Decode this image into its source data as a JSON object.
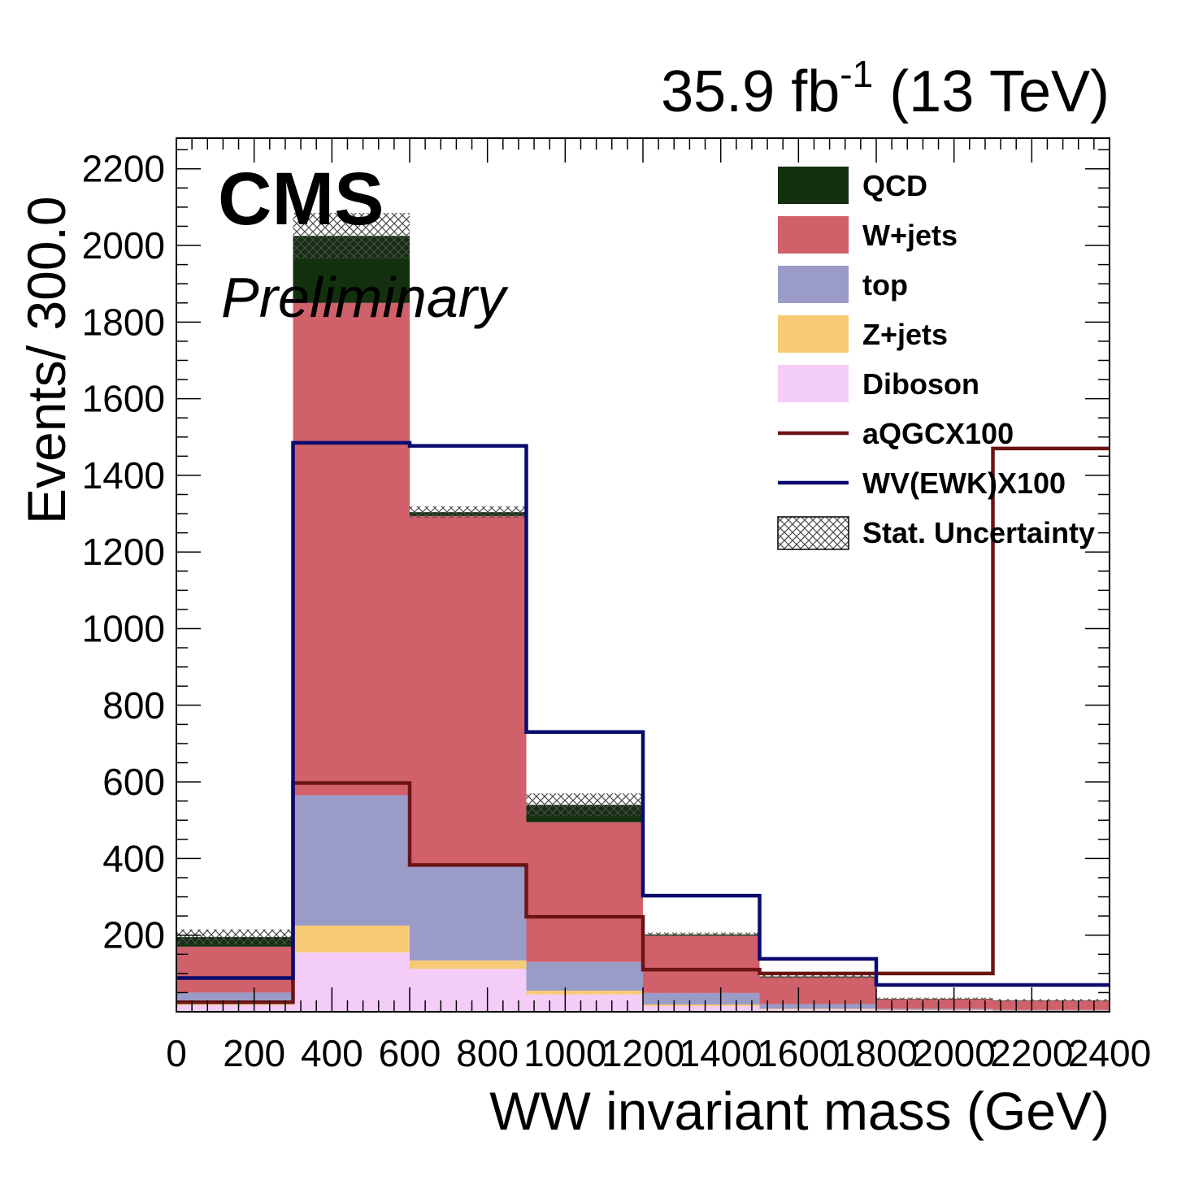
{
  "header": {
    "lumi_value": "35.9 fb",
    "lumi_exp": "-1",
    "lumi_energy": " (13 TeV)",
    "experiment": "CMS",
    "status": "Preliminary"
  },
  "chart_data": {
    "type": "bar",
    "stacked": true,
    "xlabel": "WW invariant mass (GeV)",
    "ylabel": "Events/ 300.0",
    "xlim": [
      0,
      2400
    ],
    "ylim": [
      0,
      2280
    ],
    "x_ticks": [
      "0",
      "200",
      "400",
      "600",
      "800",
      "1000",
      "1200",
      "1400",
      "1600",
      "1800",
      "2000",
      "2200",
      "2400"
    ],
    "y_ticks": [
      "200",
      "400",
      "600",
      "800",
      "1000",
      "1200",
      "1400",
      "1600",
      "1800",
      "2000",
      "2200"
    ],
    "bin_edges": [
      0,
      300,
      600,
      900,
      1200,
      1500,
      1800,
      2100,
      2400
    ],
    "stack_order": [
      "Diboson",
      "Z+jets",
      "top",
      "W+jets",
      "QCD"
    ],
    "series": [
      {
        "name": "Diboson",
        "color": "#f4ccf8",
        "values": [
          18,
          155,
          112,
          45,
          15,
          6,
          4,
          2
        ]
      },
      {
        "name": "Z+jets",
        "color": "#f7ca75",
        "values": [
          4,
          70,
          22,
          10,
          4,
          2,
          1,
          1
        ]
      },
      {
        "name": "top",
        "color": "#9b9bc8",
        "values": [
          28,
          340,
          250,
          75,
          30,
          12,
          3,
          2
        ]
      },
      {
        "name": "W+jets",
        "color": "#d0616b",
        "values": [
          120,
          1285,
          910,
          365,
          150,
          70,
          25,
          24
        ]
      },
      {
        "name": "QCD",
        "color": "#13300f",
        "values": [
          25,
          175,
          10,
          45,
          3,
          2,
          1,
          1
        ]
      }
    ],
    "stat_uncertainty": {
      "name": "Stat. Uncertainty",
      "values": [
        20,
        60,
        15,
        30,
        5,
        4,
        3,
        3
      ]
    },
    "lines": [
      {
        "name": "aQGCX100",
        "color": "#6b1414",
        "values": [
          25,
          597,
          383,
          248,
          110,
          100,
          100,
          1470
        ]
      },
      {
        "name": "WV(EWK)X100",
        "color": "#0a0a6e",
        "values": [
          88,
          1485,
          1477,
          730,
          303,
          138,
          70,
          70
        ]
      }
    ],
    "legend": {
      "placement": "top-right",
      "entries": [
        {
          "label": "QCD",
          "kind": "box",
          "color": "#13300f"
        },
        {
          "label": "W+jets",
          "kind": "box",
          "color": "#d0616b"
        },
        {
          "label": "top",
          "kind": "box",
          "color": "#9b9bc8"
        },
        {
          "label": "Z+jets",
          "kind": "box",
          "color": "#f7ca75"
        },
        {
          "label": "Diboson",
          "kind": "box",
          "color": "#f4ccf8"
        },
        {
          "label": "aQGCX100",
          "kind": "line",
          "color": "#6b1414"
        },
        {
          "label": "WV(EWK)X100",
          "kind": "line",
          "color": "#0a0a6e"
        },
        {
          "label": "Stat. Uncertainty",
          "kind": "hatch",
          "color": "#555555"
        }
      ]
    }
  }
}
